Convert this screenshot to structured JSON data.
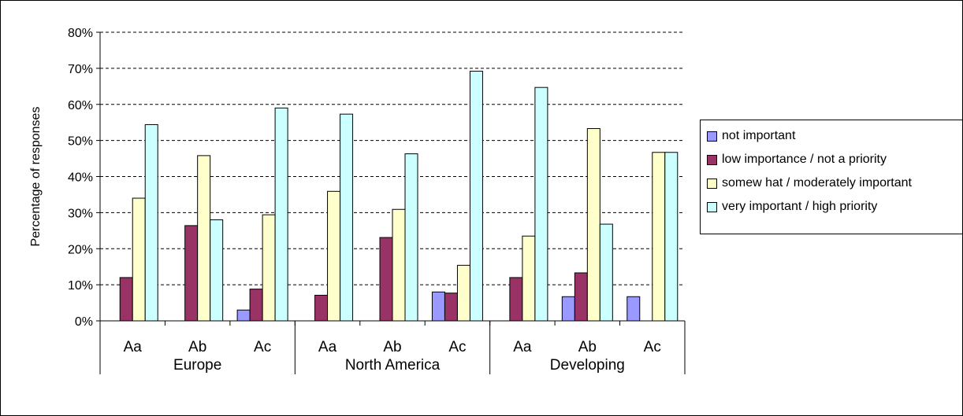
{
  "chart_data": {
    "type": "bar",
    "title": "",
    "ylabel": "Percentage of responses",
    "xlabel": "",
    "ylim": [
      0,
      80
    ],
    "y_ticks": [
      "0%",
      "10%",
      "20%",
      "30%",
      "40%",
      "50%",
      "60%",
      "70%",
      "80%"
    ],
    "y_tick_values": [
      0,
      10,
      20,
      30,
      40,
      50,
      60,
      70,
      80
    ],
    "grid": "horizontal dashed",
    "legend_position": "right",
    "groups": [
      {
        "label": "Europe",
        "categories": [
          "Aa",
          "Ab",
          "Ac"
        ]
      },
      {
        "label": "North America",
        "categories": [
          "Aa",
          "Ab",
          "Ac"
        ]
      },
      {
        "label": "Developing",
        "categories": [
          "Aa",
          "Ab",
          "Ac"
        ]
      }
    ],
    "categories": [
      "Aa",
      "Ab",
      "Ac",
      "Aa",
      "Ab",
      "Ac",
      "Aa",
      "Ab",
      "Ac"
    ],
    "series": [
      {
        "name": "not important",
        "color": "#9999ff",
        "values": [
          0,
          0,
          3,
          0,
          0,
          8,
          0,
          6.7,
          6.7
        ]
      },
      {
        "name": "low  importance / not a priority",
        "color": "#993366",
        "values": [
          12,
          26.4,
          8.8,
          7.1,
          23.1,
          7.7,
          12,
          13.3,
          0
        ]
      },
      {
        "name": "somew hat / moderately important",
        "color": "#ffffcc",
        "values": [
          34,
          45.8,
          29.4,
          35.9,
          30.9,
          15.4,
          23.5,
          53.3,
          46.7
        ]
      },
      {
        "name": "very important / high priority",
        "color": "#ccffff",
        "values": [
          54.4,
          28,
          59,
          57.3,
          46.3,
          69.2,
          64.7,
          26.8,
          46.7
        ]
      }
    ]
  }
}
